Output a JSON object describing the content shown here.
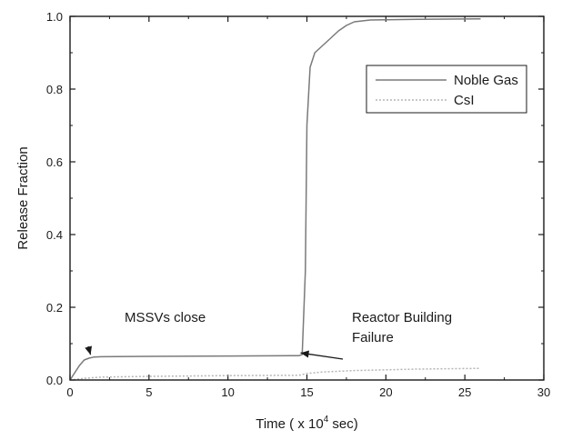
{
  "chart_data": {
    "type": "line",
    "xlabel": "Time ( x 10",
    "xlabel_exponent": "4",
    "xlabel_unit": " sec)",
    "ylabel": "Release Fraction",
    "xlim": [
      0,
      30
    ],
    "ylim": [
      0,
      1.0
    ],
    "x_ticks": [
      0,
      5,
      10,
      15,
      20,
      25,
      30
    ],
    "x_tick_labels": [
      "0",
      "5",
      "10",
      "15",
      "20",
      "25",
      "30"
    ],
    "y_ticks": [
      0.0,
      0.2,
      0.4,
      0.6,
      0.8,
      1.0
    ],
    "y_tick_labels": [
      "0.0",
      "0.2",
      "0.4",
      "0.6",
      "0.8",
      "1.0"
    ],
    "grid": false,
    "legend_position": "top-right",
    "series": [
      {
        "name": "Noble Gas",
        "color": "#7a7a7a",
        "x": [
          0,
          0.3,
          0.6,
          0.9,
          1.2,
          1.5,
          2,
          5,
          10,
          14,
          14.5,
          14.7,
          14.9,
          15.0,
          15.2,
          15.5,
          16,
          16.5,
          17,
          17.5,
          18,
          19,
          22,
          26
        ],
        "y": [
          0.0,
          0.02,
          0.04,
          0.055,
          0.06,
          0.063,
          0.064,
          0.065,
          0.066,
          0.067,
          0.067,
          0.07,
          0.3,
          0.7,
          0.86,
          0.9,
          0.92,
          0.94,
          0.96,
          0.975,
          0.985,
          0.99,
          0.992,
          0.993
        ]
      },
      {
        "name": "CsI",
        "color": "#b5b5b5",
        "x": [
          0,
          1,
          2,
          5,
          10,
          14.5,
          15,
          16,
          18,
          20,
          22,
          24,
          26
        ],
        "y": [
          0.0,
          0.005,
          0.008,
          0.01,
          0.012,
          0.013,
          0.018,
          0.022,
          0.026,
          0.028,
          0.03,
          0.031,
          0.032
        ]
      }
    ],
    "legend_labels": [
      "Noble Gas",
      "CsI"
    ],
    "annotations": [
      {
        "text": "MSSVs close",
        "lines": [
          "MSSVs close"
        ],
        "point_x": 1.3,
        "point_y": 0.062
      },
      {
        "text": "Reactor Building Failure",
        "lines": [
          "Reactor Building",
          "Failure"
        ],
        "point_x": 14.6,
        "point_y": 0.067
      }
    ]
  }
}
